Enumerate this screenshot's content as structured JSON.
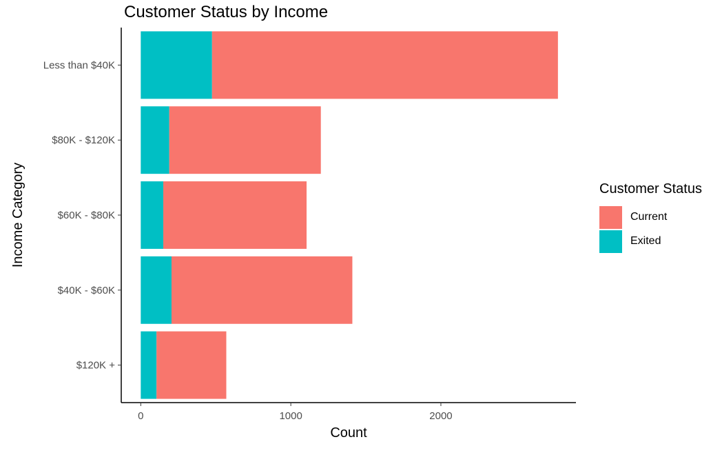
{
  "chart_data": {
    "type": "bar",
    "orientation": "horizontal",
    "stacked": true,
    "title": "Customer Status by Income",
    "xlabel": "Count",
    "ylabel": "Income Category",
    "xlim": [
      -130,
      2900
    ],
    "xticks": [
      0,
      1000,
      2000
    ],
    "grid": false,
    "legend_position": "right",
    "legend_title": "Customer Status",
    "categories": [
      "Less than $40K",
      "$80K - $120K",
      "$60K - $80K",
      "$40K - $60K",
      "$120K +"
    ],
    "series": [
      {
        "name": "Exited",
        "color": "#00BFC4",
        "values": [
          475,
          190,
          150,
          205,
          105
        ]
      },
      {
        "name": "Current",
        "color": "#F8766D",
        "values": [
          2305,
          1010,
          955,
          1205,
          465
        ]
      }
    ],
    "legend_items": [
      {
        "name": "Current",
        "color": "#F8766D"
      },
      {
        "name": "Exited",
        "color": "#00BFC4"
      }
    ]
  }
}
